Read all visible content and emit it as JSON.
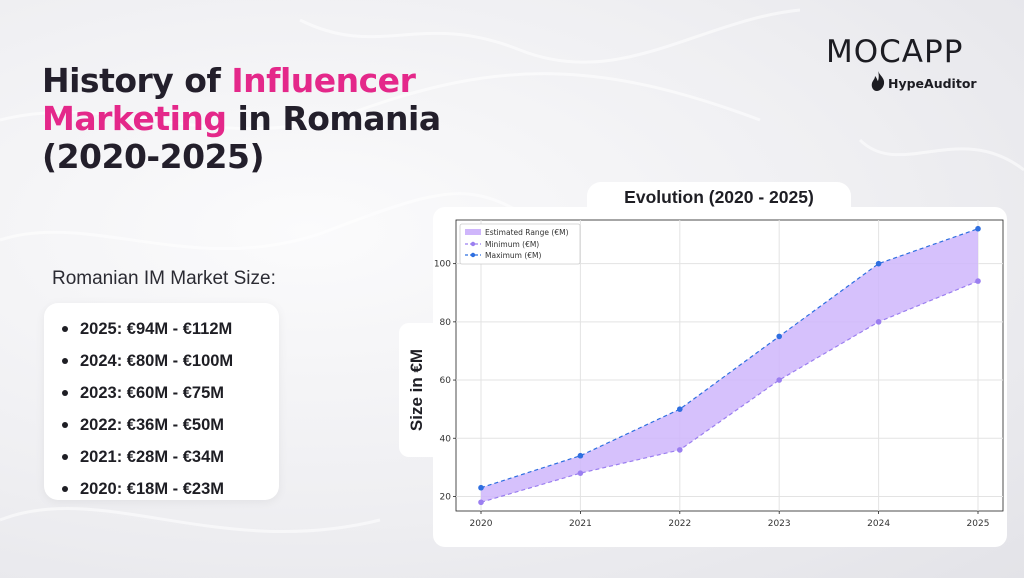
{
  "header": {
    "title_part1": "History of ",
    "title_highlight1": "Influencer",
    "title_highlight2": "Marketing",
    "title_part2": " in Romania",
    "title_part3": "(2020-2025)"
  },
  "logo": {
    "main": "MOCAPP",
    "sub": "HypeAuditor"
  },
  "market": {
    "label": "Romanian IM Market Size:",
    "items": [
      "2025: €94M - €112M",
      "2024: €80M - €100M",
      "2023: €60M - €75M",
      "2022: €36M - €50M",
      "2021: €28M - €34M",
      "2020: €18M - €23M"
    ]
  },
  "colors": {
    "accent": "#e4288a",
    "band": "#cfb6fb",
    "min_line": "#9b7ff0",
    "max_line": "#2f6fe0"
  },
  "chart_data": {
    "type": "area",
    "title": "Evolution (2020 - 2025)",
    "xlabel": "",
    "ylabel": "Size in €M",
    "x": [
      2020,
      2021,
      2022,
      2023,
      2024,
      2025
    ],
    "series": [
      {
        "name": "Estimated Range (€M)",
        "kind": "band",
        "lower": [
          18,
          28,
          36,
          60,
          80,
          94
        ],
        "upper": [
          23,
          34,
          50,
          75,
          100,
          112
        ]
      },
      {
        "name": "Minimum (€M)",
        "kind": "line",
        "values": [
          18,
          28,
          36,
          60,
          80,
          94
        ]
      },
      {
        "name": "Maximum (€M)",
        "kind": "line",
        "values": [
          23,
          34,
          50,
          75,
          100,
          112
        ]
      }
    ],
    "xticks": [
      "2020",
      "2021",
      "2022",
      "2023",
      "2024",
      "2025"
    ],
    "yticks": [
      "20",
      "40",
      "60",
      "80",
      "100"
    ],
    "ylim": [
      15,
      115
    ],
    "grid": true,
    "legend": "top-left"
  }
}
